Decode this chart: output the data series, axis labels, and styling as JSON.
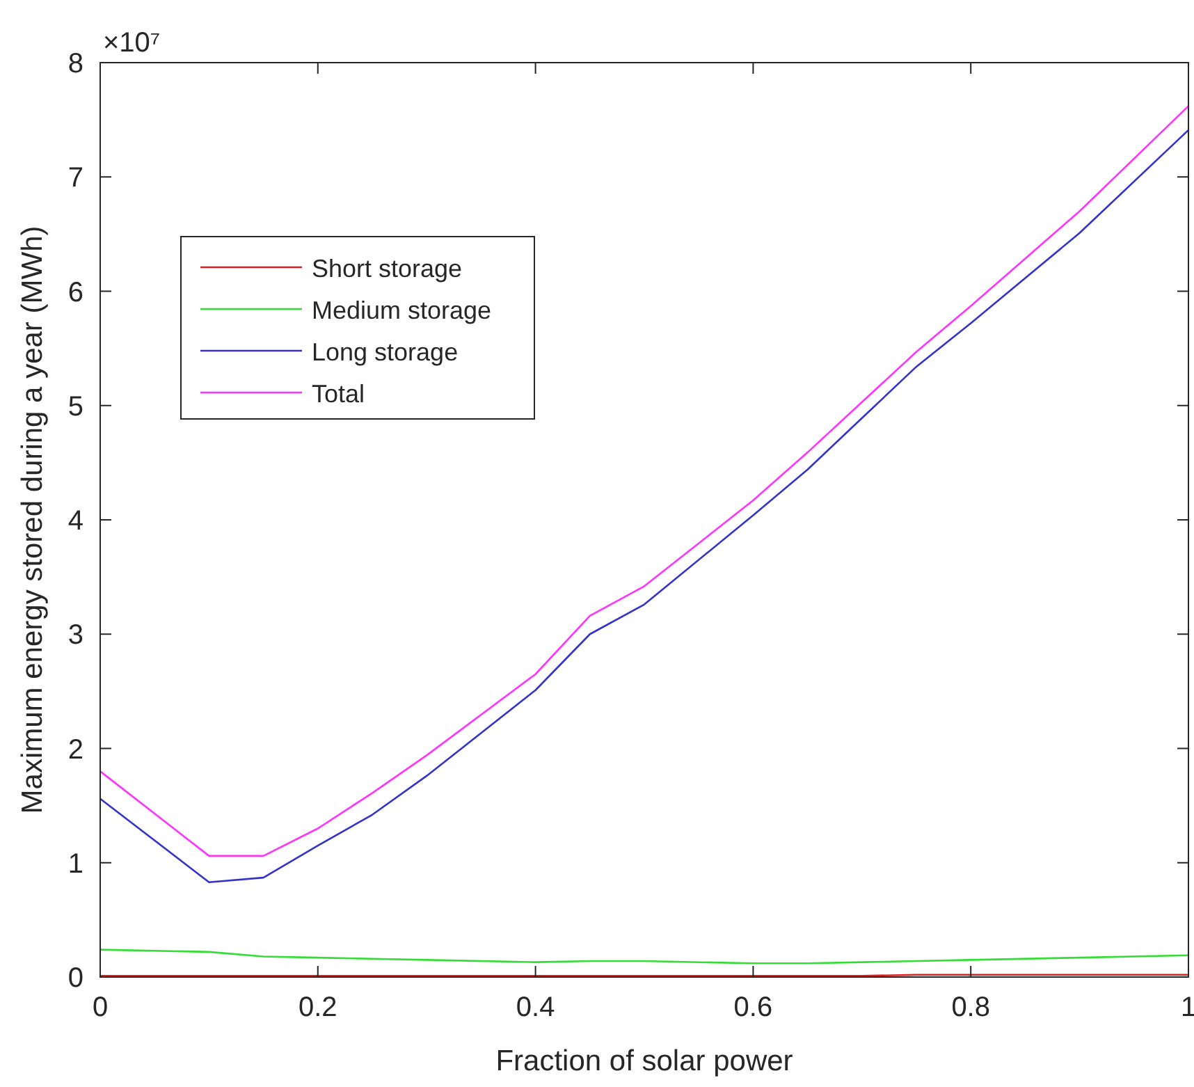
{
  "chart_data": {
    "type": "line",
    "xlabel": "Fraction of solar power",
    "ylabel": "Maximum energy stored during a year (MWh)",
    "annotations": [
      "×10⁷"
    ],
    "x": [
      0,
      0.1,
      0.15,
      0.2,
      0.25,
      0.3,
      0.4,
      0.45,
      0.5,
      0.6,
      0.65,
      0.7,
      0.75,
      0.8,
      0.9,
      1
    ],
    "xlim": [
      0,
      1
    ],
    "xticks": [
      0,
      0.2,
      0.4,
      0.6,
      0.8,
      1
    ],
    "ylim": [
      0,
      8
    ],
    "yticks": [
      0,
      1,
      2,
      3,
      4,
      5,
      6,
      7,
      8
    ],
    "grid": false,
    "legend": "top left",
    "marker": "none",
    "line_style": "solid",
    "series": [
      {
        "name": "Short storage",
        "color": "#d62020",
        "values": [
          0.01,
          0.01,
          0.01,
          0.01,
          0.01,
          0.01,
          0.01,
          0.01,
          0.01,
          0.01,
          0.01,
          0.01,
          0.02,
          0.02,
          0.02,
          0.02
        ]
      },
      {
        "name": "Medium storage",
        "color": "#33dd33",
        "values": [
          0.24,
          0.22,
          0.18,
          0.17,
          0.16,
          0.15,
          0.13,
          0.14,
          0.14,
          0.12,
          0.12,
          0.13,
          0.14,
          0.15,
          0.17,
          0.19
        ]
      },
      {
        "name": "Long storage",
        "color": "#3333cc",
        "values": [
          1.56,
          0.83,
          0.87,
          1.15,
          1.42,
          1.76,
          2.51,
          3.0,
          3.26,
          4.04,
          4.44,
          4.89,
          5.34,
          5.72,
          6.51,
          7.41
        ]
      },
      {
        "name": "Total",
        "color": "#ff33ff",
        "values": [
          1.8,
          1.06,
          1.06,
          1.3,
          1.61,
          1.94,
          2.65,
          3.16,
          3.42,
          4.17,
          4.59,
          5.03,
          5.47,
          5.87,
          6.7,
          7.62
        ]
      }
    ]
  }
}
